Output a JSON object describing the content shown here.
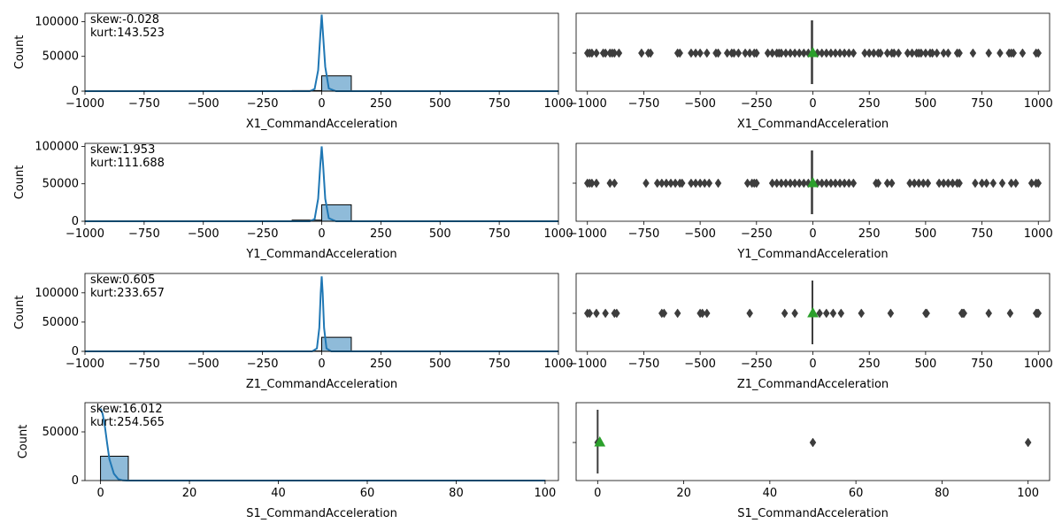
{
  "chart_data": [
    {
      "type": "histogram",
      "xlabel": "X1_CommandAcceleration",
      "ylabel": "Count",
      "xlim": [
        -1000,
        1000
      ],
      "ylim": [
        0,
        112000
      ],
      "xticks": [
        -1000,
        -750,
        -500,
        -250,
        0,
        250,
        500,
        750,
        1000
      ],
      "yticks": [
        0,
        50000,
        100000
      ],
      "annotations": [
        "skew:-0.028",
        "kurt:143.523"
      ],
      "bins": [
        {
          "x0": -125,
          "x1": 0,
          "count": 800
        },
        {
          "x0": 0,
          "x1": 125,
          "count": 22000
        }
      ],
      "kde": [
        [
          -1000,
          0
        ],
        [
          -50,
          0
        ],
        [
          -30,
          3000
        ],
        [
          -15,
          30000
        ],
        [
          -6,
          80000
        ],
        [
          0,
          110000
        ],
        [
          6,
          80000
        ],
        [
          15,
          35000
        ],
        [
          30,
          4000
        ],
        [
          60,
          0
        ],
        [
          1000,
          0
        ]
      ]
    },
    {
      "type": "boxplot",
      "xlabel": "X1_CommandAcceleration",
      "xlim": [
        -1050,
        1050
      ],
      "xticks": [
        -1000,
        -750,
        -500,
        -250,
        0,
        250,
        500,
        750,
        1000
      ],
      "whisker_range": [
        -5,
        5
      ],
      "mean": 0,
      "outliers": [
        -1000,
        -990,
        -980,
        -960,
        -930,
        -920,
        -900,
        -890,
        -880,
        -860,
        -760,
        -730,
        -720,
        -600,
        -590,
        -540,
        -520,
        -500,
        -470,
        -430,
        -420,
        -380,
        -360,
        -350,
        -330,
        -300,
        -280,
        -260,
        -250,
        -200,
        -180,
        -160,
        -150,
        -140,
        -120,
        -100,
        -80,
        -60,
        -40,
        -20,
        20,
        40,
        60,
        80,
        100,
        120,
        140,
        160,
        180,
        230,
        250,
        270,
        290,
        300,
        330,
        350,
        360,
        380,
        420,
        440,
        460,
        470,
        480,
        500,
        520,
        530,
        550,
        580,
        600,
        640,
        650,
        710,
        780,
        830,
        870,
        880,
        890,
        930,
        990,
        1000
      ]
    },
    {
      "type": "histogram",
      "xlabel": "Y1_CommandAcceleration",
      "ylabel": "Count",
      "xlim": [
        -1000,
        1000
      ],
      "ylim": [
        0,
        104000
      ],
      "xticks": [
        -1000,
        -750,
        -500,
        -250,
        0,
        250,
        500,
        750,
        1000
      ],
      "yticks": [
        0,
        50000,
        100000
      ],
      "annotations": [
        "skew:1.953",
        "kurt:111.688"
      ],
      "bins": [
        {
          "x0": -125,
          "x1": 0,
          "count": 1500
        },
        {
          "x0": 0,
          "x1": 125,
          "count": 22000
        }
      ],
      "kde": [
        [
          -1000,
          0
        ],
        [
          -50,
          0
        ],
        [
          -30,
          3000
        ],
        [
          -15,
          30000
        ],
        [
          -6,
          75000
        ],
        [
          0,
          100000
        ],
        [
          6,
          75000
        ],
        [
          15,
          30000
        ],
        [
          30,
          4000
        ],
        [
          60,
          0
        ],
        [
          1000,
          0
        ]
      ]
    },
    {
      "type": "boxplot",
      "xlabel": "Y1_CommandAcceleration",
      "xlim": [
        -1050,
        1050
      ],
      "xticks": [
        -1000,
        -750,
        -500,
        -250,
        0,
        250,
        500,
        750,
        1000
      ],
      "whisker_range": [
        -5,
        5
      ],
      "mean": 0,
      "outliers": [
        -1000,
        -990,
        -980,
        -960,
        -900,
        -880,
        -740,
        -690,
        -670,
        -650,
        -630,
        -610,
        -590,
        -580,
        -540,
        -520,
        -500,
        -480,
        -460,
        -420,
        -290,
        -270,
        -260,
        -250,
        -180,
        -160,
        -140,
        -120,
        -100,
        -80,
        -60,
        -40,
        -20,
        20,
        40,
        60,
        80,
        100,
        120,
        140,
        160,
        180,
        280,
        290,
        330,
        350,
        430,
        450,
        470,
        490,
        510,
        560,
        580,
        600,
        620,
        640,
        650,
        720,
        750,
        770,
        800,
        840,
        880,
        900,
        970,
        990,
        1000
      ]
    },
    {
      "type": "histogram",
      "xlabel": "Z1_CommandAcceleration",
      "ylabel": "Count",
      "xlim": [
        -1000,
        1000
      ],
      "ylim": [
        0,
        133000
      ],
      "xticks": [
        -1000,
        -750,
        -500,
        -250,
        0,
        250,
        500,
        750,
        1000
      ],
      "yticks": [
        0,
        50000,
        100000
      ],
      "annotations": [
        "skew:0.605",
        "kurt:233.657"
      ],
      "bins": [
        {
          "x0": -125,
          "x1": 0,
          "count": 600
        },
        {
          "x0": 0,
          "x1": 125,
          "count": 24000
        }
      ],
      "kde": [
        [
          -1000,
          0
        ],
        [
          -40,
          0
        ],
        [
          -20,
          5000
        ],
        [
          -10,
          40000
        ],
        [
          -4,
          100000
        ],
        [
          0,
          128000
        ],
        [
          4,
          100000
        ],
        [
          10,
          40000
        ],
        [
          20,
          5000
        ],
        [
          40,
          0
        ],
        [
          1000,
          0
        ]
      ]
    },
    {
      "type": "boxplot",
      "xlabel": "Z1_CommandAcceleration",
      "xlim": [
        -1050,
        1050
      ],
      "xticks": [
        -1000,
        -750,
        -500,
        -250,
        0,
        250,
        500,
        750,
        1000
      ],
      "whisker_range": [
        -2,
        2
      ],
      "mean": 0,
      "outliers": [
        -1000,
        -990,
        -960,
        -920,
        -880,
        -870,
        -670,
        -660,
        -600,
        -500,
        -490,
        -470,
        -280,
        -125,
        -80,
        30,
        60,
        90,
        125,
        215,
        345,
        500,
        505,
        660,
        665,
        670,
        780,
        875,
        990,
        995,
        1000
      ]
    },
    {
      "type": "histogram",
      "xlabel": "S1_CommandAcceleration",
      "ylabel": "Count",
      "xlim": [
        -3.5,
        103
      ],
      "ylim": [
        0,
        80000
      ],
      "xticks": [
        0,
        20,
        40,
        60,
        80,
        100
      ],
      "yticks": [
        0,
        50000
      ],
      "annotations": [
        "skew:16.012",
        "kurt:254.565"
      ],
      "bins": [
        {
          "x0": 0,
          "x1": 6.25,
          "count": 25000
        },
        {
          "x0": 6.25,
          "x1": 12.5,
          "count": 0
        },
        {
          "x0": 12.5,
          "x1": 18.75,
          "count": 0
        },
        {
          "x0": 18.75,
          "x1": 25,
          "count": 0
        },
        {
          "x0": 25,
          "x1": 31.25,
          "count": 0
        },
        {
          "x0": 31.25,
          "x1": 37.5,
          "count": 0
        },
        {
          "x0": 37.5,
          "x1": 43.75,
          "count": 0
        },
        {
          "x0": 43.75,
          "x1": 50,
          "count": 0
        },
        {
          "x0": 50,
          "x1": 56.25,
          "count": 0
        },
        {
          "x0": 56.25,
          "x1": 62.5,
          "count": 0
        },
        {
          "x0": 62.5,
          "x1": 68.75,
          "count": 0
        },
        {
          "x0": 68.75,
          "x1": 75,
          "count": 0
        },
        {
          "x0": 75,
          "x1": 81.25,
          "count": 0
        },
        {
          "x0": 81.25,
          "x1": 87.5,
          "count": 0
        },
        {
          "x0": 87.5,
          "x1": 93.75,
          "count": 0
        },
        {
          "x0": 93.75,
          "x1": 100,
          "count": 200
        }
      ],
      "kde": [
        [
          0,
          74000
        ],
        [
          0.5,
          68000
        ],
        [
          1,
          55000
        ],
        [
          1.5,
          38000
        ],
        [
          2,
          22000
        ],
        [
          3,
          7000
        ],
        [
          4,
          1500
        ],
        [
          5,
          200
        ],
        [
          6,
          0
        ],
        [
          100,
          0
        ]
      ]
    },
    {
      "type": "boxplot",
      "xlabel": "S1_CommandAcceleration",
      "xlim": [
        -5,
        105
      ],
      "xticks": [
        0,
        20,
        40,
        60,
        80,
        100
      ],
      "whisker_range": [
        0,
        0
      ],
      "mean": 0.5,
      "outliers": [
        0,
        50,
        100
      ]
    }
  ]
}
